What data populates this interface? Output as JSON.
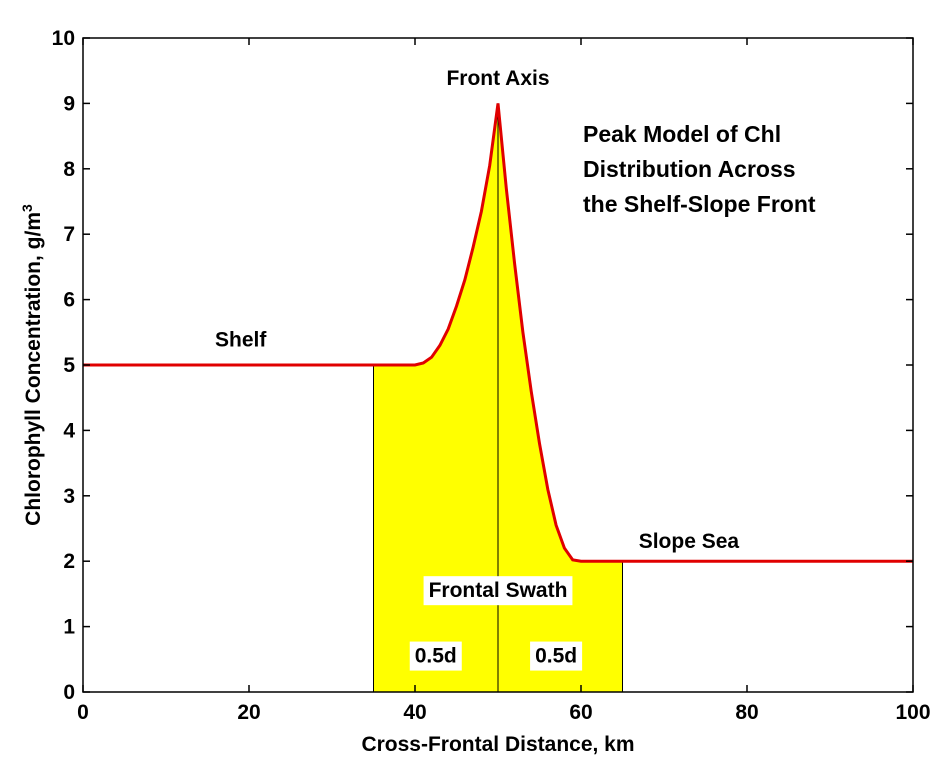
{
  "chart_data": {
    "type": "line",
    "title_lines": [
      "Peak Model of Chl",
      "Distribution Across",
      "the Shelf-Slope Front"
    ],
    "xlabel": "Cross-Frontal Distance, km",
    "ylabel_main": "Chlorophyll Concentration, g/m",
    "ylabel_sup": "3",
    "xlim": [
      0,
      100
    ],
    "ylim": [
      0,
      10
    ],
    "xticks": [
      0,
      20,
      40,
      60,
      80,
      100
    ],
    "yticks": [
      0,
      1,
      2,
      3,
      4,
      5,
      6,
      7,
      8,
      9,
      10
    ],
    "grid": false,
    "series": [
      {
        "color": "#e00000",
        "x": [
          0,
          35,
          40,
          41,
          42,
          43,
          44,
          45,
          46,
          47,
          48,
          49,
          50,
          51,
          52,
          53,
          54,
          55,
          56,
          57,
          58,
          59,
          60,
          65,
          100
        ],
        "y": [
          5,
          5,
          5,
          5.03,
          5.12,
          5.3,
          5.55,
          5.9,
          6.3,
          6.8,
          7.35,
          8.05,
          9,
          7.7,
          6.55,
          5.5,
          4.6,
          3.8,
          3.1,
          2.55,
          2.2,
          2.02,
          2,
          2,
          2
        ]
      }
    ],
    "shaded_region": {
      "xmin": 35,
      "xmax": 65,
      "color": "#ffff00"
    },
    "vertical_line_x": 50,
    "annotations": [
      {
        "text": "Shelf",
        "x": 19,
        "y": 5.28
      },
      {
        "text": "Front Axis",
        "x": 50,
        "y": 9.28
      },
      {
        "text": "Slope Sea",
        "x": 73,
        "y": 2.2
      }
    ],
    "boxed_labels": [
      {
        "text": "Frontal Swath",
        "x": 50,
        "y": 1.45
      },
      {
        "text": "0.5d",
        "x": 42.5,
        "y": 0.45
      },
      {
        "text": "0.5d",
        "x": 57,
        "y": 0.45
      }
    ]
  }
}
